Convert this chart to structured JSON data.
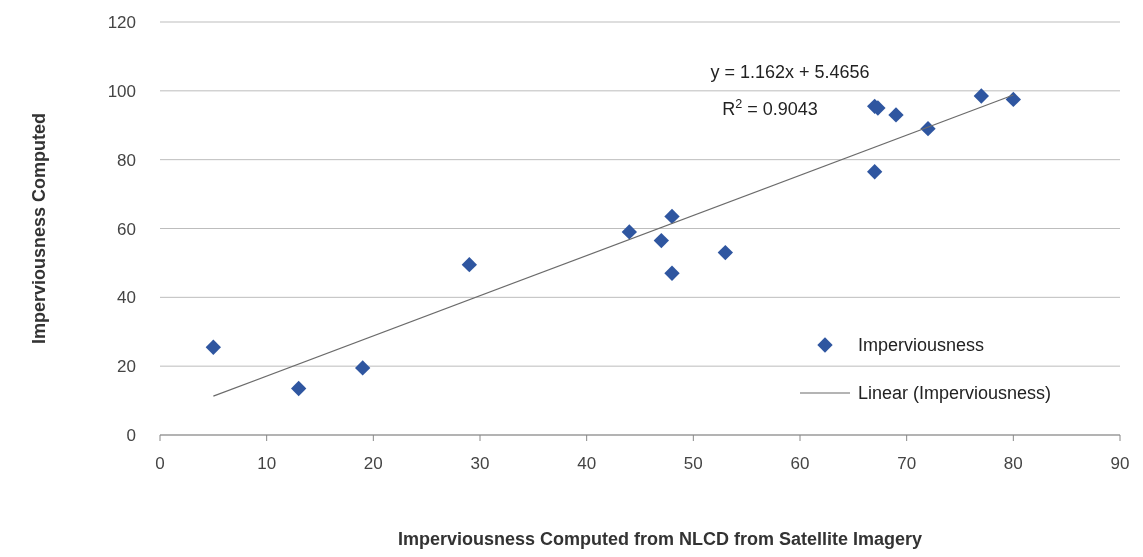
{
  "chart_data": {
    "type": "scatter",
    "xlabel": "Imperviousness Computed from NLCD from Satellite Imagery",
    "ylabel": "Imperviousness Computed",
    "xlim": [
      0,
      90
    ],
    "ylim": [
      0,
      120
    ],
    "xticks": [
      0,
      10,
      20,
      30,
      40,
      50,
      60,
      70,
      80,
      90
    ],
    "yticks": [
      0,
      20,
      40,
      60,
      80,
      100,
      120
    ],
    "grid": "y",
    "legend": "right",
    "annotations": [
      "y = 1.162x + 5.4656",
      "R$^{2}$ = 0.9043"
    ],
    "series": [
      {
        "name": "Imperviousness",
        "marker": "diamond",
        "color": "#2f56a0",
        "x": [
          5,
          13,
          19,
          29,
          44,
          47,
          48,
          48,
          53,
          67,
          67,
          67.3,
          69,
          72,
          77,
          80
        ],
        "values": [
          25.5,
          13.5,
          19.5,
          49.5,
          59,
          56.5,
          63.5,
          47,
          53,
          76.5,
          95.5,
          95,
          93,
          89,
          98.5,
          97.5
        ]
      },
      {
        "name": "Linear (Imperviousness)",
        "type": "line",
        "color": "#6b6b6b",
        "x": [
          5,
          80
        ],
        "values": [
          11.3,
          98.8
        ]
      }
    ]
  }
}
